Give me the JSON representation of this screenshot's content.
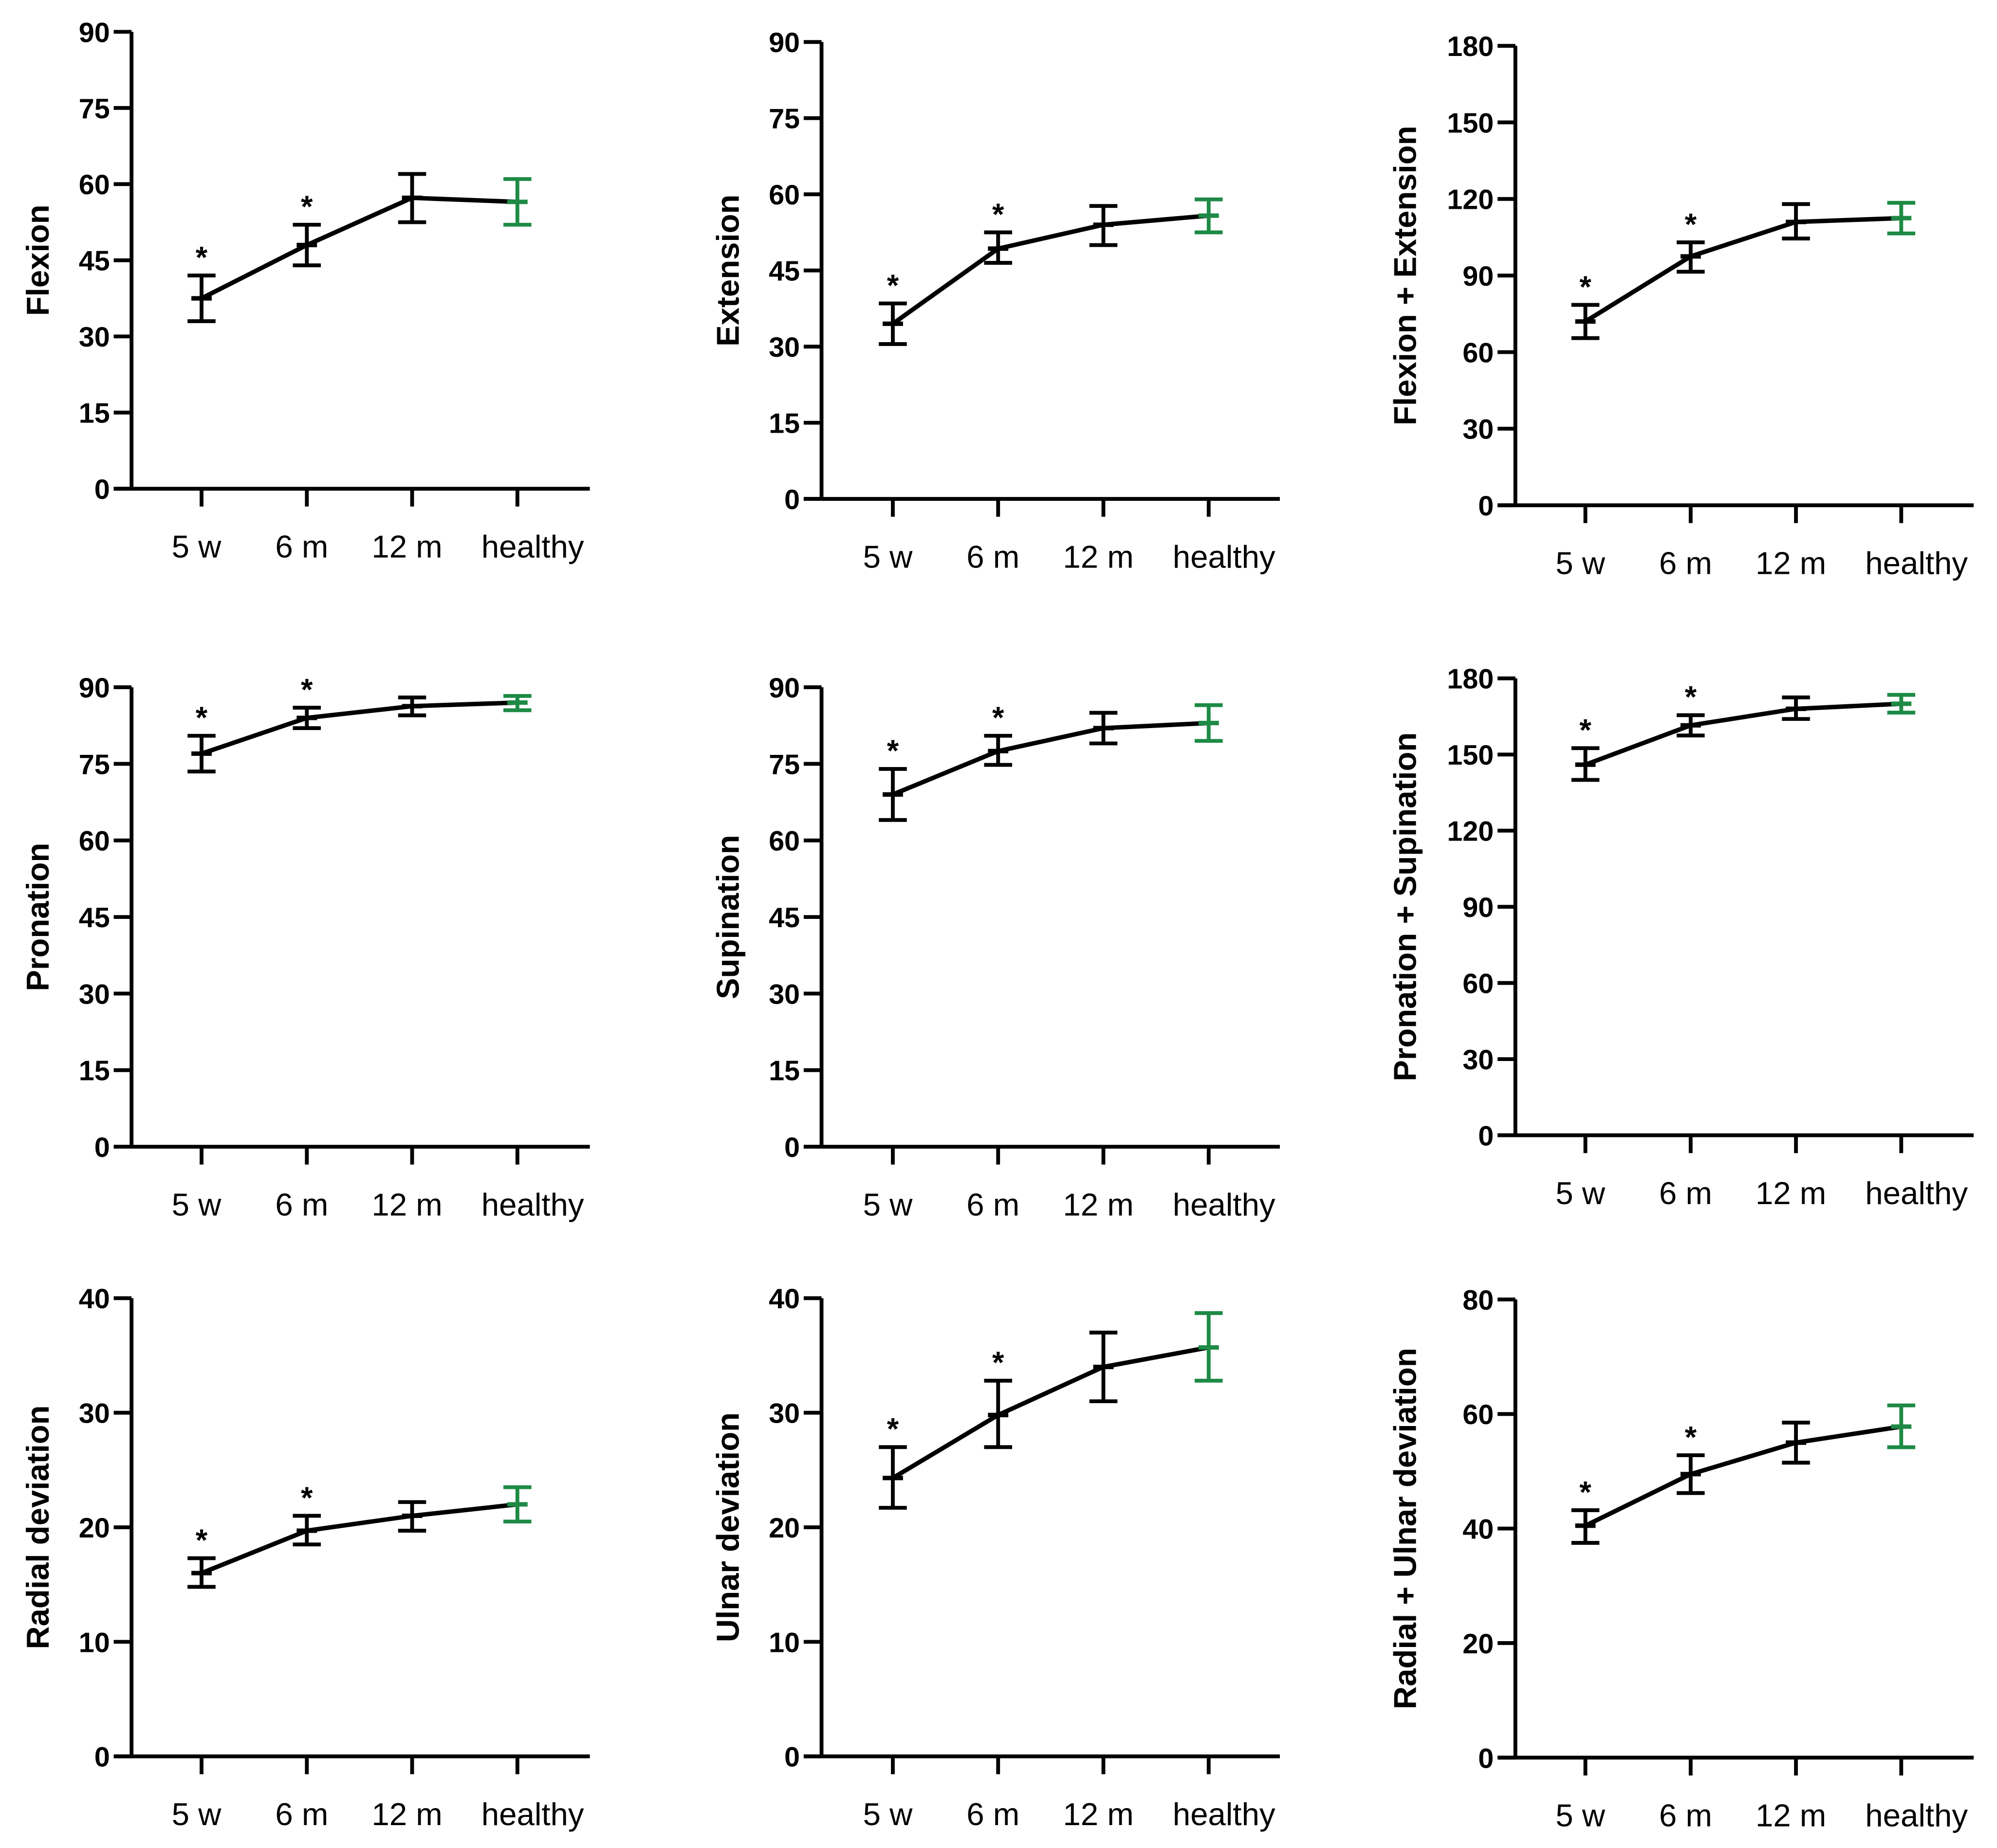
{
  "chart_data": [
    {
      "type": "line",
      "ylabel": "Flexion",
      "ylim": [
        0,
        90
      ],
      "yticks": [
        0,
        15,
        30,
        45,
        60,
        75,
        90
      ],
      "categories": [
        "5 w",
        "6 m",
        "12 m",
        "healthy"
      ],
      "values": [
        37.5,
        48,
        57.3,
        56.5
      ],
      "err_low": [
        33,
        44,
        52.5,
        52
      ],
      "err_high": [
        42,
        52,
        62,
        61
      ],
      "significant": [
        "*",
        "*",
        "",
        ""
      ]
    },
    {
      "type": "line",
      "ylabel": "Extension",
      "ylim": [
        0,
        90
      ],
      "yticks": [
        0,
        15,
        30,
        45,
        60,
        75,
        90
      ],
      "categories": [
        "5 w",
        "6 m",
        "12 m",
        "healthy"
      ],
      "values": [
        34.5,
        49.3,
        54,
        55.8
      ],
      "err_low": [
        30.5,
        46.5,
        50,
        52.5
      ],
      "err_high": [
        38.5,
        52.5,
        57.7,
        59
      ],
      "significant": [
        "*",
        "*",
        "",
        ""
      ]
    },
    {
      "type": "line",
      "ylabel": "Flexion + Extension",
      "ylim": [
        0,
        180
      ],
      "yticks": [
        0,
        30,
        60,
        90,
        120,
        150,
        180
      ],
      "categories": [
        "5 w",
        "6 m",
        "12 m",
        "healthy"
      ],
      "values": [
        72,
        97.5,
        111,
        112.5
      ],
      "err_low": [
        65.5,
        91.5,
        104.5,
        106.5
      ],
      "err_high": [
        78.5,
        103,
        118,
        118.5
      ],
      "significant": [
        "*",
        "*",
        "",
        ""
      ]
    },
    {
      "type": "line",
      "ylabel": "Pronation",
      "ylim": [
        0,
        90
      ],
      "yticks": [
        0,
        15,
        30,
        45,
        60,
        75,
        90
      ],
      "categories": [
        "5 w",
        "6 m",
        "12 m",
        "healthy"
      ],
      "values": [
        77,
        84,
        86.3,
        87
      ],
      "err_low": [
        73.5,
        82,
        84.5,
        85.5
      ],
      "err_high": [
        80.5,
        86,
        88,
        88.3
      ],
      "significant": [
        "*",
        "*",
        "",
        ""
      ]
    },
    {
      "type": "line",
      "ylabel": "Supination",
      "ylim": [
        0,
        90
      ],
      "yticks": [
        0,
        15,
        30,
        45,
        60,
        75,
        90
      ],
      "categories": [
        "5 w",
        "6 m",
        "12 m",
        "healthy"
      ],
      "values": [
        69,
        77.5,
        82,
        83
      ],
      "err_low": [
        64,
        74.8,
        79,
        79.5
      ],
      "err_high": [
        74,
        80.5,
        85,
        86.5
      ],
      "significant": [
        "*",
        "*",
        "",
        ""
      ]
    },
    {
      "type": "line",
      "ylabel": "Pronation + Supination",
      "ylim": [
        0,
        180
      ],
      "yticks": [
        0,
        30,
        60,
        90,
        120,
        150,
        180
      ],
      "categories": [
        "5 w",
        "6 m",
        "12 m",
        "healthy"
      ],
      "values": [
        146,
        161.5,
        168,
        170
      ],
      "err_low": [
        140,
        157.5,
        164,
        166.5
      ],
      "err_high": [
        152.5,
        165.5,
        172.5,
        173.5
      ],
      "significant": [
        "*",
        "*",
        "",
        ""
      ]
    },
    {
      "type": "line",
      "ylabel": "Radial deviation",
      "ylim": [
        0,
        40
      ],
      "yticks": [
        0,
        10,
        20,
        30,
        40
      ],
      "categories": [
        "5 w",
        "6 m",
        "12 m",
        "healthy"
      ],
      "values": [
        16,
        19.7,
        21,
        22
      ],
      "err_low": [
        14.8,
        18.5,
        19.7,
        20.5
      ],
      "err_high": [
        17.3,
        21,
        22.2,
        23.5
      ],
      "significant": [
        "*",
        "*",
        "",
        ""
      ]
    },
    {
      "type": "line",
      "ylabel": "Ulnar deviation",
      "ylim": [
        0,
        40
      ],
      "yticks": [
        0,
        10,
        20,
        30,
        40
      ],
      "categories": [
        "5 w",
        "6 m",
        "12 m",
        "healthy"
      ],
      "values": [
        24.3,
        29.8,
        34,
        35.7
      ],
      "err_low": [
        21.7,
        27,
        31,
        32.8
      ],
      "err_high": [
        27,
        32.8,
        37,
        38.7
      ],
      "significant": [
        "*",
        "*",
        "",
        ""
      ]
    },
    {
      "type": "line",
      "ylabel": "Radial + Ulnar deviation",
      "ylim": [
        0,
        80
      ],
      "yticks": [
        0,
        20,
        40,
        60,
        80
      ],
      "categories": [
        "5 w",
        "6 m",
        "12 m",
        "healthy"
      ],
      "values": [
        40.5,
        49.5,
        55,
        57.8
      ],
      "err_low": [
        37.5,
        46.2,
        51.5,
        54.2
      ],
      "err_high": [
        43.2,
        52.8,
        58.5,
        61.5
      ],
      "significant": [
        "*",
        "*",
        "",
        ""
      ]
    }
  ],
  "colors": {
    "series": "#000000",
    "healthy": "#1e8a45"
  }
}
